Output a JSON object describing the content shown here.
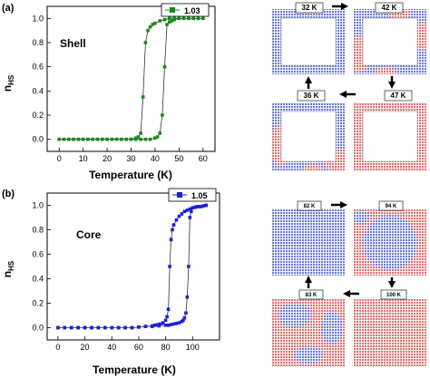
{
  "panels": [
    {
      "tag": "(a)"
    },
    {
      "tag": "(b)"
    }
  ],
  "chart_data": [
    {
      "type": "line",
      "title": "Shell",
      "xlabel": "Temperature (K)",
      "ylabel_main": "n",
      "ylabel_sub": "HS",
      "xlim": [
        -5,
        65
      ],
      "ylim": [
        -0.1,
        1.1
      ],
      "xticks": [
        0,
        10,
        20,
        30,
        40,
        50,
        60
      ],
      "yticks": [
        0.0,
        0.2,
        0.4,
        0.6,
        0.8,
        1.0
      ],
      "ytick_labels": [
        "0.0",
        "0.2",
        "0.4",
        "0.6",
        "0.8",
        "1.0"
      ],
      "color": "#1a8a1a",
      "series": [
        {
          "name": "1.03",
          "x": [
            0,
            2,
            4,
            6,
            8,
            10,
            12,
            14,
            16,
            18,
            20,
            22,
            24,
            26,
            28,
            30,
            32,
            33,
            34,
            35,
            36,
            37,
            38,
            39,
            40,
            42,
            44,
            46,
            48,
            50,
            52,
            54,
            56,
            58,
            60,
            60,
            58,
            56,
            54,
            52,
            50,
            48,
            47,
            46,
            45,
            44,
            43,
            42,
            41,
            40,
            38,
            36,
            34,
            32,
            30,
            28,
            26,
            24,
            22,
            20,
            18,
            16,
            14,
            12,
            10,
            8,
            6,
            4,
            2,
            0
          ],
          "y": [
            0,
            0,
            0,
            0,
            0,
            0,
            0,
            0,
            0,
            0,
            0,
            0,
            0,
            0,
            0,
            0,
            0.01,
            0.02,
            0.05,
            0.35,
            0.8,
            0.9,
            0.93,
            0.95,
            0.96,
            0.98,
            0.99,
            1,
            1,
            1,
            1,
            1,
            1,
            1,
            1,
            1,
            1,
            1,
            1,
            1,
            1,
            0.99,
            0.98,
            0.97,
            0.95,
            0.6,
            0.2,
            0.05,
            0.02,
            0.01,
            0,
            0,
            0,
            0,
            0,
            0,
            0,
            0,
            0,
            0,
            0,
            0,
            0,
            0,
            0,
            0,
            0,
            0,
            0,
            0
          ]
        }
      ],
      "legend": "top-right"
    },
    {
      "type": "line",
      "title": "Core",
      "xlabel": "Temperature (K)",
      "ylabel_main": "n",
      "ylabel_sub": "HS",
      "xlim": [
        -8,
        120
      ],
      "ylim": [
        -0.1,
        1.1
      ],
      "xticks": [
        0,
        20,
        40,
        60,
        80,
        100
      ],
      "yticks": [
        0.0,
        0.2,
        0.4,
        0.6,
        0.8,
        1.0
      ],
      "ytick_labels": [
        "0.0",
        "0.2",
        "0.4",
        "0.6",
        "0.8",
        "1.0"
      ],
      "color": "#1f1fd0",
      "series": [
        {
          "name": "1.05",
          "x": [
            0,
            5,
            10,
            15,
            20,
            25,
            30,
            35,
            40,
            45,
            50,
            55,
            60,
            65,
            70,
            72,
            74,
            76,
            78,
            80,
            81,
            82,
            83,
            84,
            85,
            86,
            88,
            90,
            92,
            94,
            96,
            98,
            100,
            102,
            104,
            106,
            108,
            110,
            110,
            108,
            106,
            104,
            102,
            100,
            99,
            98,
            97,
            96,
            95,
            94,
            93,
            92,
            90,
            88,
            86,
            84,
            82,
            80,
            75,
            70,
            65,
            60,
            55,
            50,
            45,
            40,
            35,
            30,
            25,
            20,
            15,
            10,
            5,
            0
          ],
          "y": [
            0,
            0,
            0,
            0,
            0,
            0,
            0,
            0,
            0,
            0,
            0,
            0,
            0.005,
            0.01,
            0.015,
            0.02,
            0.025,
            0.03,
            0.04,
            0.06,
            0.09,
            0.15,
            0.5,
            0.72,
            0.8,
            0.84,
            0.88,
            0.91,
            0.93,
            0.95,
            0.96,
            0.97,
            0.98,
            0.985,
            0.99,
            0.99,
            0.995,
            1,
            1,
            0.995,
            0.99,
            0.99,
            0.985,
            0.98,
            0.95,
            0.9,
            0.5,
            0.25,
            0.12,
            0.08,
            0.06,
            0.05,
            0.04,
            0.035,
            0.03,
            0.025,
            0.02,
            0.02,
            0.015,
            0.01,
            0.01,
            0.005,
            0,
            0,
            0,
            0,
            0,
            0,
            0,
            0,
            0,
            0,
            0,
            0
          ]
        }
      ],
      "legend": "top-right"
    }
  ],
  "snapshots": {
    "shell": [
      {
        "label": "32 K",
        "kind": "shell-blue"
      },
      {
        "label": "42 K",
        "kind": "shell-mixed"
      },
      {
        "label": "36 K",
        "kind": "shell-mixed-blue"
      },
      {
        "label": "47 K",
        "kind": "shell-red"
      }
    ],
    "core": [
      {
        "label": "82 K",
        "kind": "core-blue"
      },
      {
        "label": "94 K",
        "kind": "core-mixed"
      },
      {
        "label": "83 K",
        "kind": "core-mixed-red"
      },
      {
        "label": "100 K",
        "kind": "core-red"
      }
    ],
    "colors": {
      "ls": "#6f7fd6",
      "hs": "#e07474"
    }
  }
}
